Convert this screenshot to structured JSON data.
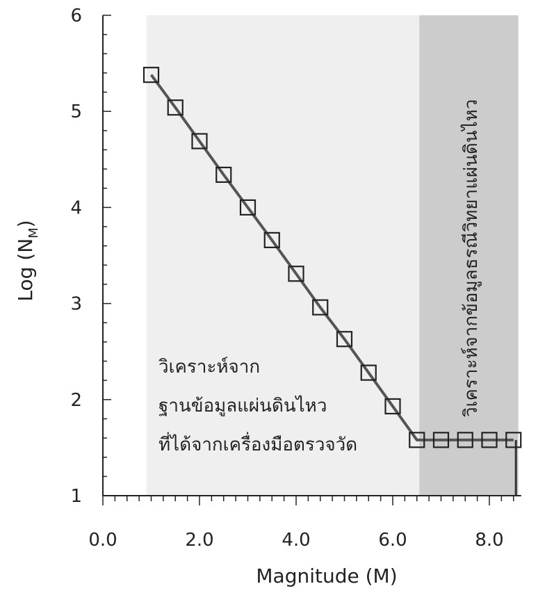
{
  "chart_data": {
    "type": "line",
    "xlabel": "Magnitude (M)",
    "ylabel": "Log (N",
    "ylabel_sub": "M",
    "ylabel_close": ")",
    "xlim": [
      0,
      8.6
    ],
    "ylim": [
      1,
      6
    ],
    "x_ticks": [
      "0.0",
      "2.0",
      "4.0",
      "6.0",
      "8.0"
    ],
    "x_tick_values": [
      0,
      2,
      4,
      6,
      8
    ],
    "y_ticks": [
      "1",
      "2",
      "3",
      "4",
      "5",
      "6"
    ],
    "y_tick_values": [
      1,
      2,
      3,
      4,
      5,
      6
    ],
    "regions": [
      {
        "x_start": 0.9,
        "x_end": 6.55,
        "color": "#efefef"
      },
      {
        "x_start": 6.55,
        "x_end": 8.6,
        "color": "#cccccc"
      }
    ],
    "annotation_left": [
      "วิเคราะห์จาก",
      "ฐานข้อมูลแผ่นดินไหว",
      "ที่ได้จากเครื่องมือตรวจวัด"
    ],
    "annotation_right": "วิเคราะห์จากข้อมูลธรณีวิทยาแผ่นดินไหว",
    "series": [
      {
        "color": "#555555",
        "x": [
          1.0,
          1.5,
          2.0,
          2.5,
          3.0,
          3.5,
          4.0,
          4.5,
          5.0,
          5.5,
          6.0,
          6.5,
          7.0,
          7.5,
          8.0,
          8.5
        ],
        "y": [
          5.38,
          5.04,
          4.69,
          4.34,
          4.0,
          3.66,
          3.31,
          2.96,
          2.63,
          2.28,
          1.93,
          1.58,
          1.58,
          1.58,
          1.58,
          1.58
        ]
      }
    ],
    "drop_line": {
      "x": 8.55,
      "y_from": 1.58,
      "y_to": 1.0
    }
  }
}
